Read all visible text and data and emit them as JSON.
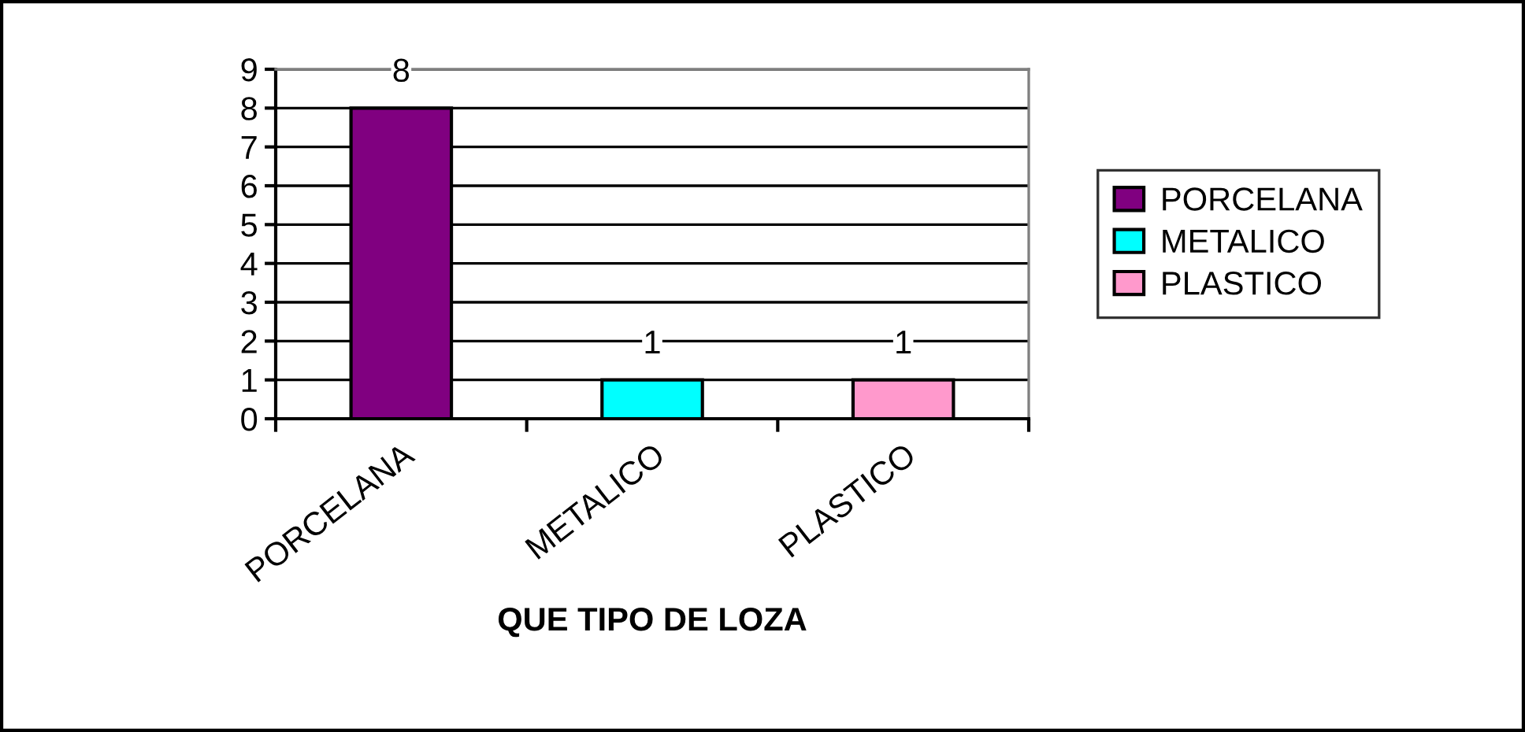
{
  "chart_data": {
    "type": "bar",
    "categories": [
      "PORCELANA",
      "METALICO",
      "PLASTICO"
    ],
    "series": [
      {
        "name": "PORCELANA",
        "color": "#800080",
        "values": [
          8,
          null,
          null
        ]
      },
      {
        "name": "METALICO",
        "color": "#00ffff",
        "values": [
          null,
          1,
          null
        ]
      },
      {
        "name": "PLASTICO",
        "color": "#ff99cc",
        "values": [
          null,
          null,
          1
        ]
      }
    ],
    "xlabel": "QUE TIPO DE LOZA",
    "ylim": [
      0,
      9
    ],
    "yticks": [
      0,
      1,
      2,
      3,
      4,
      5,
      6,
      7,
      8,
      9
    ],
    "grid": "y",
    "legend": "right",
    "data_labels": true
  }
}
